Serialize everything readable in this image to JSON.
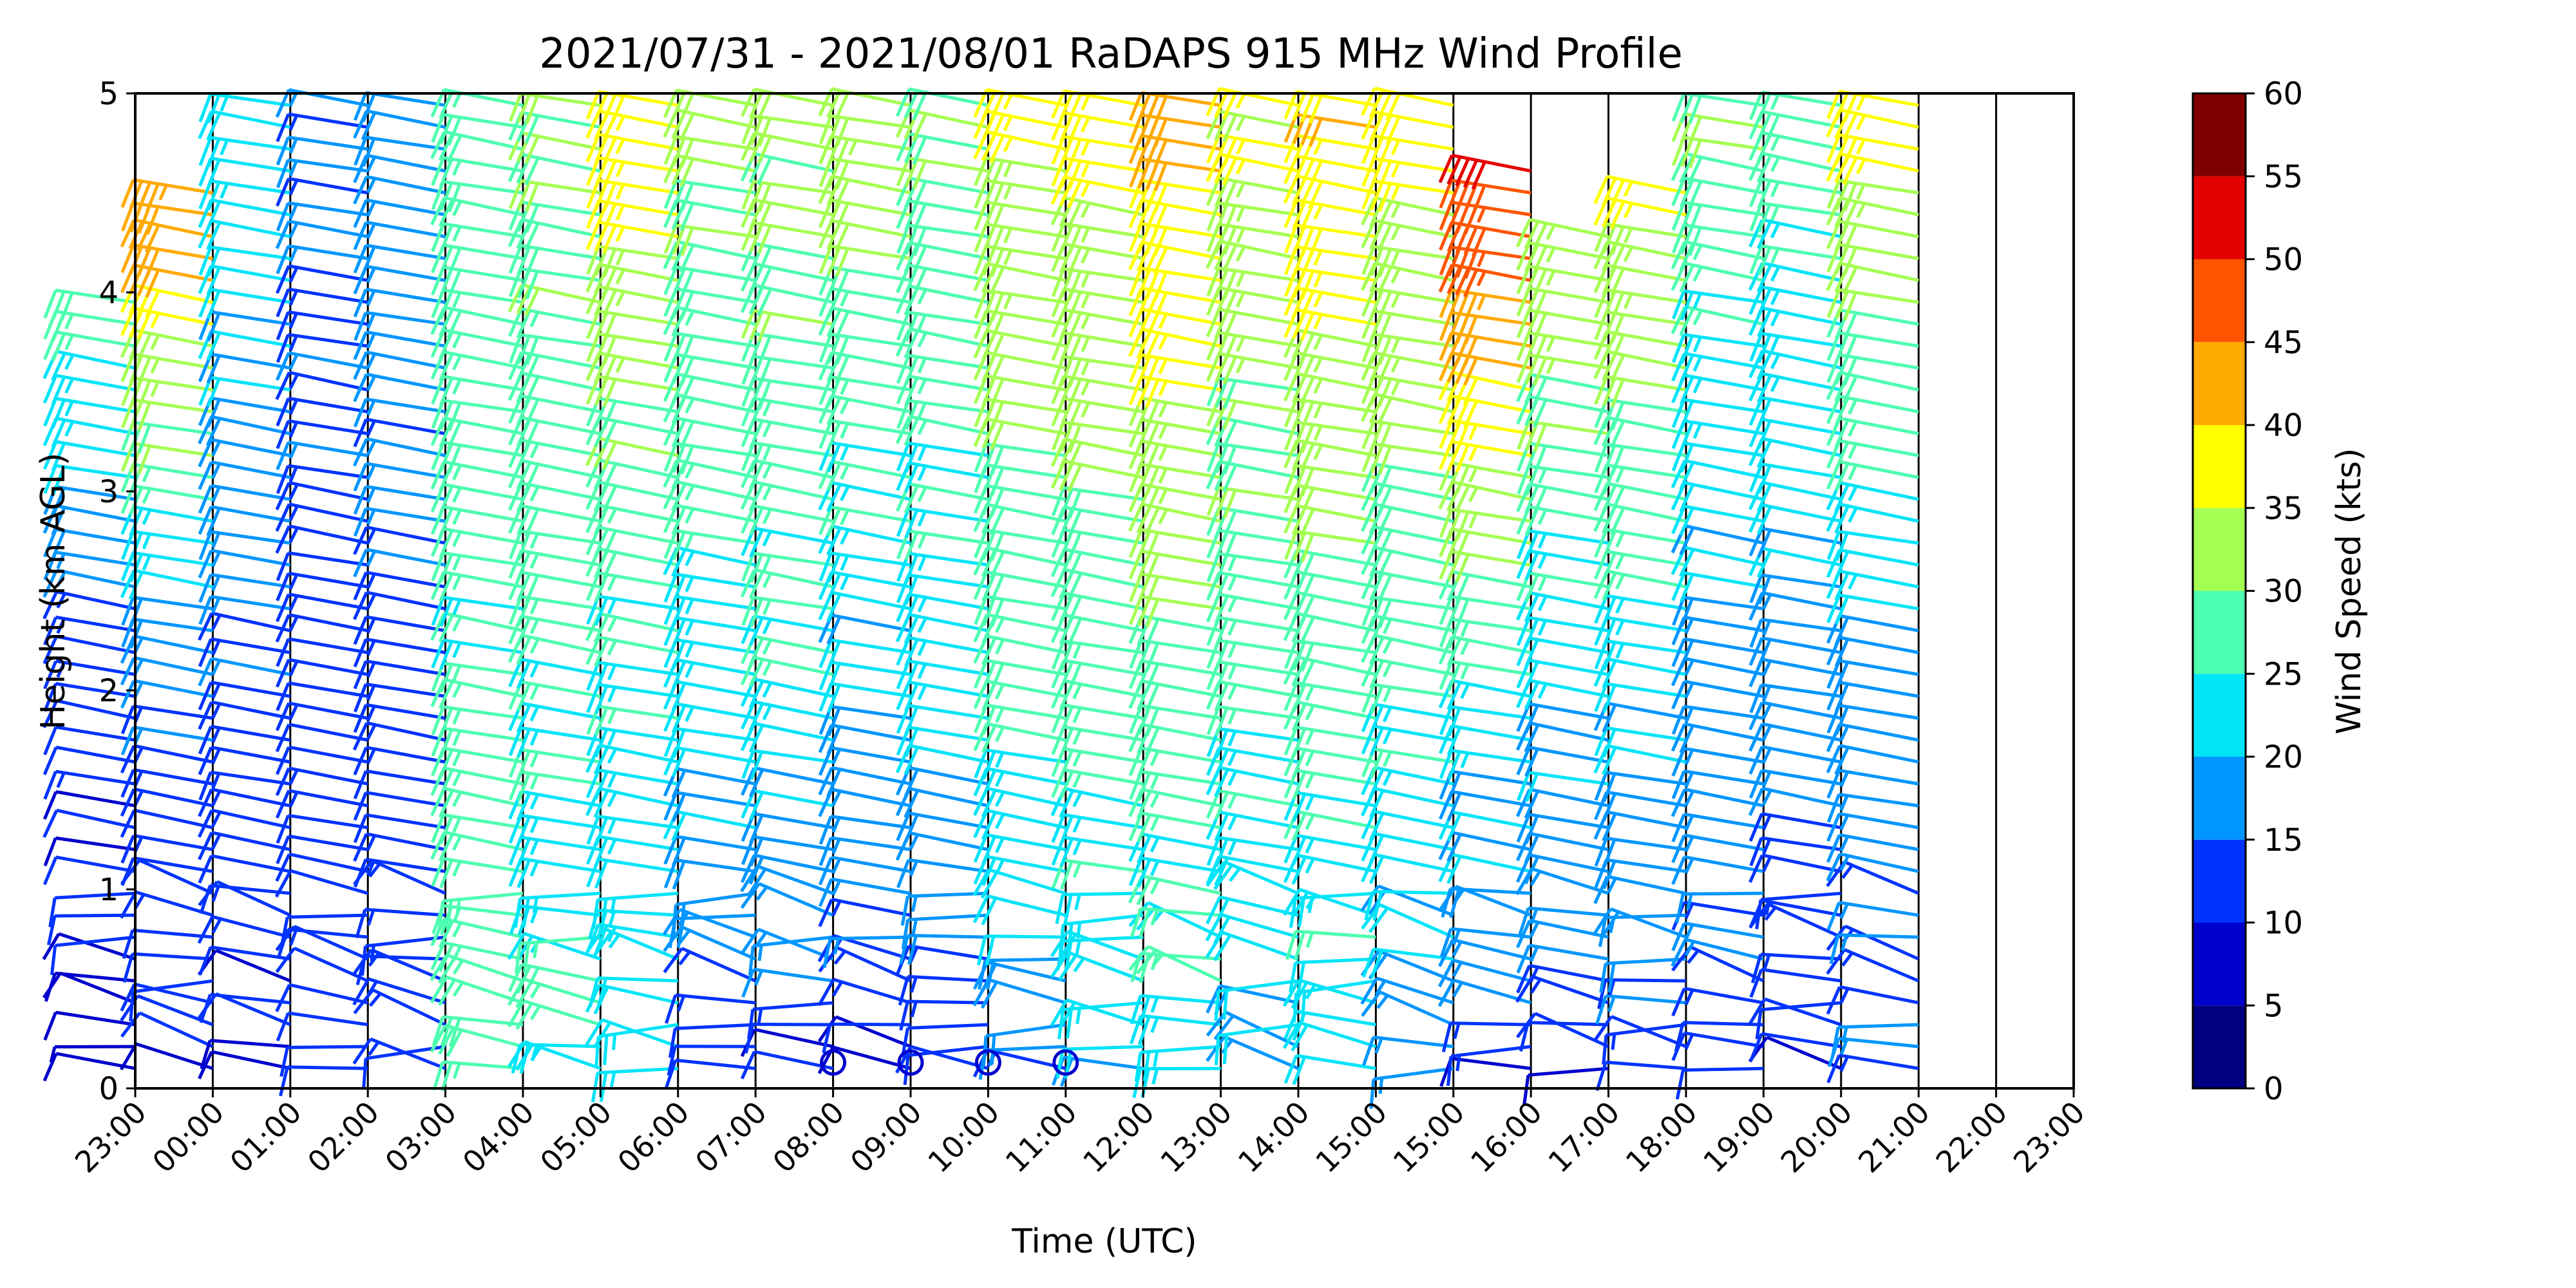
{
  "chart_data": {
    "type": "wind_barb_profile",
    "title": "2021/07/31 - 2021/08/01 RaDAPS 915 MHz Wind Profile",
    "xlabel": "Time (UTC)",
    "ylabel": "Height (km AGL)",
    "x_ticks": [
      "23:00",
      "00:00",
      "01:00",
      "02:00",
      "03:00",
      "04:00",
      "05:00",
      "06:00",
      "07:00",
      "08:00",
      "09:00",
      "10:00",
      "11:00",
      "12:00",
      "13:00",
      "14:00",
      "15:00",
      "15:00",
      "16:00",
      "17:00",
      "18:00",
      "19:00",
      "20:00",
      "21:00",
      "22:00",
      "23:00"
    ],
    "y_ticks": [
      "0",
      "1",
      "2",
      "3",
      "4",
      "5"
    ],
    "ylim": [
      0,
      5
    ],
    "grid": "vertical lines at each hour",
    "colorbar": {
      "label": "Wind Speed (kts)",
      "ticks": [
        "0",
        "5",
        "10",
        "15",
        "20",
        "25",
        "30",
        "35",
        "40",
        "45",
        "50",
        "55",
        "60"
      ],
      "colors": [
        "#000080",
        "#0000cd",
        "#0033ff",
        "#0096ff",
        "#00e4f8",
        "#4dffb0",
        "#a5ff52",
        "#ffff00",
        "#ffaa00",
        "#ff5500",
        "#e50000",
        "#800000"
      ]
    },
    "calm_markers_x": [
      "08:00",
      "09:00",
      "10:00",
      "11:00"
    ],
    "calm_marker_height_km": 0.13,
    "profiles_note": "Each hourly column holds barbs every ~0.12 km up to ~2 km, then every ~0.12 km aloft to 5 km; speed in kts colours each barb.",
    "columns": [
      {
        "time": "23:00",
        "low_speed": 8,
        "mid_speed": 12,
        "top_speed": 28,
        "max_height": 4.0
      },
      {
        "time": "00:00",
        "low_speed": 9,
        "mid_speed": 15,
        "top_speed": 45,
        "max_height": 4.5
      },
      {
        "time": "01:00",
        "low_speed": 9,
        "mid_speed": 14,
        "top_speed": 24,
        "max_height": 5.0
      },
      {
        "time": "02:00",
        "low_speed": 10,
        "mid_speed": 13,
        "top_speed": 16,
        "max_height": 5.0
      },
      {
        "time": "03:00",
        "low_speed": 12,
        "mid_speed": 14,
        "top_speed": 18,
        "max_height": 5.0
      },
      {
        "time": "04:00",
        "low_speed": 28,
        "mid_speed": 26,
        "top_speed": 28,
        "max_height": 5.0
      },
      {
        "time": "05:00",
        "low_speed": 24,
        "mid_speed": 26,
        "top_speed": 30,
        "max_height": 5.0
      },
      {
        "time": "06:00",
        "low_speed": 22,
        "mid_speed": 24,
        "top_speed": 38,
        "max_height": 5.0
      },
      {
        "time": "07:00",
        "low_speed": 9,
        "mid_speed": 23,
        "top_speed": 32,
        "max_height": 5.0
      },
      {
        "time": "08:00",
        "low_speed": 8,
        "mid_speed": 24,
        "top_speed": 32,
        "max_height": 5.0
      },
      {
        "time": "09:00",
        "low_speed": 8,
        "mid_speed": 20,
        "top_speed": 33,
        "max_height": 5.0
      },
      {
        "time": "10:00",
        "low_speed": 10,
        "mid_speed": 22,
        "top_speed": 30,
        "max_height": 5.0
      },
      {
        "time": "11:00",
        "low_speed": 14,
        "mid_speed": 27,
        "top_speed": 35,
        "max_height": 5.0
      },
      {
        "time": "12:00",
        "low_speed": 20,
        "mid_speed": 27,
        "top_speed": 37,
        "max_height": 5.0
      },
      {
        "time": "13:00",
        "low_speed": 22,
        "mid_speed": 28,
        "top_speed": 42,
        "max_height": 5.0
      },
      {
        "time": "14:00",
        "low_speed": 18,
        "mid_speed": 26,
        "top_speed": 36,
        "max_height": 5.0
      },
      {
        "time": "15:00",
        "low_speed": 20,
        "mid_speed": 27,
        "top_speed": 40,
        "max_height": 5.0
      },
      {
        "time": "16:00",
        "low_speed": 14,
        "mid_speed": 26,
        "top_speed": 38,
        "max_height": 5.0
      },
      {
        "time": "17:00",
        "low_speed": 10,
        "mid_speed": 24,
        "top_speed": 52,
        "max_height": 4.7
      },
      {
        "time": "18:00",
        "low_speed": 10,
        "mid_speed": 22,
        "top_speed": 35,
        "max_height": 4.3
      },
      {
        "time": "19:00",
        "low_speed": 11,
        "mid_speed": 22,
        "top_speed": 36,
        "max_height": 4.5
      },
      {
        "time": "20:00",
        "low_speed": 12,
        "mid_speed": 17,
        "top_speed": 30,
        "max_height": 5.0
      },
      {
        "time": "21:00",
        "low_speed": 10,
        "mid_speed": 17,
        "top_speed": 28,
        "max_height": 5.0
      },
      {
        "time": "22:00",
        "low_speed": 13,
        "mid_speed": 18,
        "top_speed": 38,
        "max_height": 5.0
      }
    ]
  }
}
